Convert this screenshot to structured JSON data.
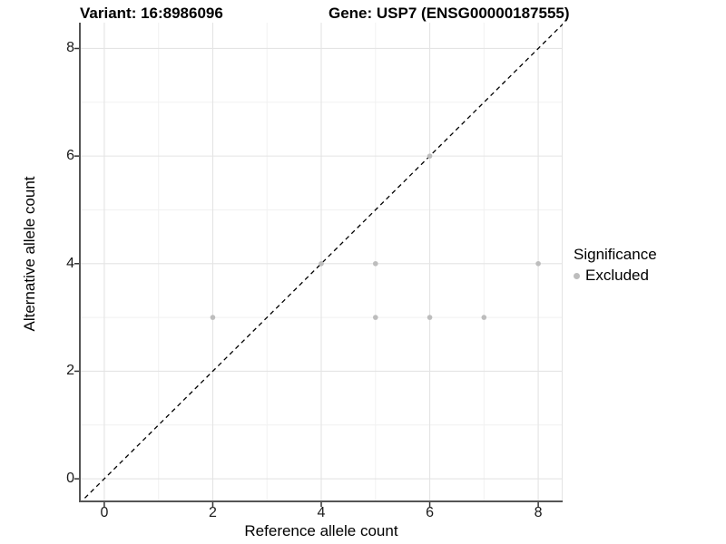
{
  "chart_data": {
    "type": "scatter",
    "title_left": "Variant: 16:8986096",
    "title_right": "Gene: USP7 (ENSG00000187555)",
    "xlabel": "Reference allele count",
    "ylabel": "Alternative allele count",
    "xlim": [
      -0.45,
      8.45
    ],
    "ylim": [
      -0.42,
      8.48
    ],
    "x_ticks": [
      0,
      2,
      4,
      6,
      8
    ],
    "y_ticks": [
      0,
      2,
      4,
      6,
      8
    ],
    "x_minor_gridlines": [
      1,
      3,
      5,
      7
    ],
    "y_minor_gridlines": [
      1,
      3,
      5,
      7
    ],
    "grid": true,
    "legend": {
      "title": "Significance",
      "position": "right",
      "entries": [
        {
          "label": "Excluded",
          "color": "#bdbdbd"
        }
      ]
    },
    "series": [
      {
        "name": "Excluded",
        "color": "#bdbdbd",
        "marker": "circle",
        "points": [
          [
            2,
            3
          ],
          [
            4,
            4
          ],
          [
            5,
            3
          ],
          [
            5,
            4
          ],
          [
            6,
            3
          ],
          [
            6,
            6
          ],
          [
            7,
            3
          ],
          [
            8,
            4
          ]
        ]
      }
    ],
    "reference_line": {
      "kind": "identity",
      "equation": "y = x",
      "style": "dashed",
      "color": "#000000"
    },
    "colors": {
      "background": "#ffffff",
      "major_grid": "#e4e4e4",
      "minor_grid": "#f1f1f1",
      "axis_line": "#555555",
      "tick_mark": "#333333",
      "point": "#bdbdbd",
      "text": "#000000"
    }
  }
}
